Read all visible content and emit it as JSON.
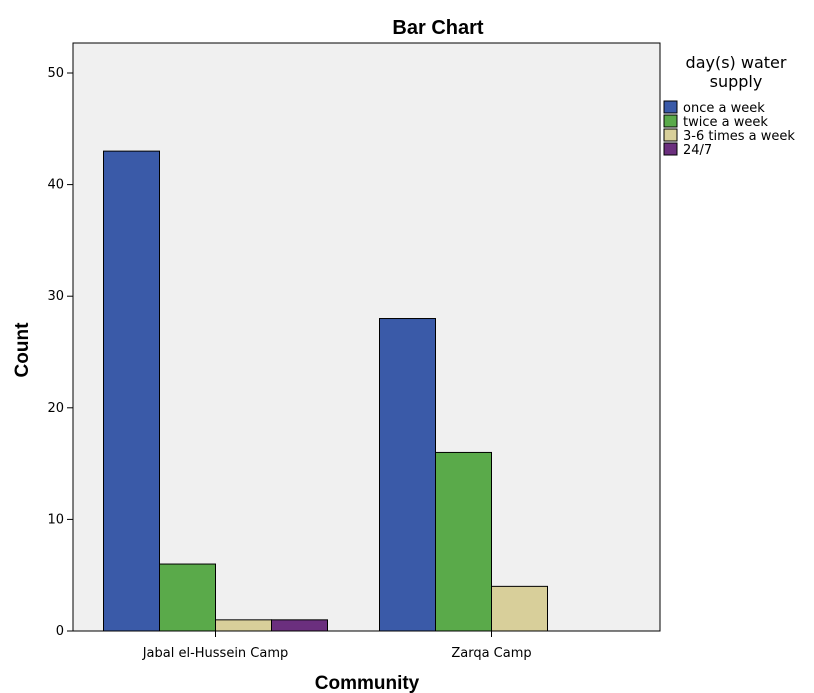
{
  "chart_data": {
    "type": "bar",
    "title": "Bar Chart",
    "xlabel": "Community",
    "ylabel": "Count",
    "ylim": [
      0,
      50
    ],
    "yticks": [
      0,
      10,
      20,
      30,
      40,
      50
    ],
    "categories": [
      "Jabal el-Hussein Camp",
      "Zarqa Camp"
    ],
    "legend": {
      "title_lines": [
        "day(s) water",
        "supply"
      ],
      "placement": "right"
    },
    "grid": false,
    "series": [
      {
        "name": "once a week",
        "color": "#3a5aa8",
        "values": [
          43,
          28
        ]
      },
      {
        "name": "twice a week",
        "color": "#5aaa4a",
        "values": [
          6,
          16
        ]
      },
      {
        "name": "3-6 times a week",
        "color": "#d8cf9a",
        "values": [
          1,
          4
        ]
      },
      {
        "name": "24/7",
        "color": "#6b2f7e",
        "values": [
          1,
          0
        ]
      }
    ],
    "plot_background": "#f0f0f0"
  }
}
